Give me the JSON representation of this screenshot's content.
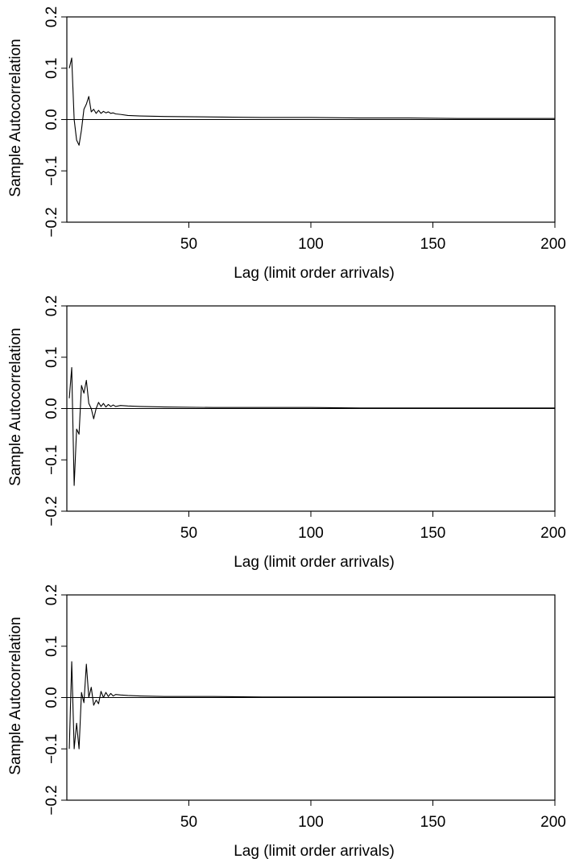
{
  "chart_data": [
    {
      "type": "line",
      "xlabel": "Lag (limit order arrivals)",
      "ylabel": "Sample Autocorrelation",
      "xlim": [
        0,
        200
      ],
      "ylim": [
        -0.2,
        0.2
      ],
      "xticks": [
        "50",
        "100",
        "150",
        "200"
      ],
      "yticks": [
        "-0.2",
        "-0.1",
        "0.0",
        "0.1",
        "0.2"
      ],
      "grid": false,
      "reference_line": 0,
      "x": [
        1,
        2,
        3,
        4,
        5,
        6,
        7,
        8,
        9,
        10,
        11,
        12,
        13,
        14,
        15,
        16,
        17,
        18,
        19,
        20,
        22,
        25,
        30,
        40,
        60,
        80,
        100,
        120,
        140,
        160,
        180,
        200
      ],
      "series": [
        {
          "values": [
            0.1,
            0.12,
            0.0,
            -0.04,
            -0.05,
            -0.02,
            0.02,
            0.03,
            0.045,
            0.015,
            0.02,
            0.012,
            0.018,
            0.012,
            0.016,
            0.013,
            0.015,
            0.012,
            0.013,
            0.011,
            0.01,
            0.008,
            0.007,
            0.006,
            0.005,
            0.004,
            0.004,
            0.003,
            0.003,
            0.002,
            0.002,
            0.002
          ]
        }
      ]
    },
    {
      "type": "line",
      "xlabel": "Lag (limit order arrivals)",
      "ylabel": "Sample Autocorrelation",
      "xlim": [
        0,
        200
      ],
      "ylim": [
        -0.2,
        0.2
      ],
      "xticks": [
        "50",
        "100",
        "150",
        "200"
      ],
      "yticks": [
        "-0.2",
        "-0.1",
        "0.0",
        "0.1",
        "0.2"
      ],
      "grid": false,
      "reference_line": 0,
      "x": [
        1,
        2,
        3,
        4,
        5,
        6,
        7,
        8,
        9,
        10,
        11,
        12,
        13,
        14,
        15,
        16,
        17,
        18,
        19,
        20,
        22,
        25,
        30,
        40,
        60,
        80,
        100,
        120,
        140,
        160,
        180,
        200
      ],
      "series": [
        {
          "values": [
            0.02,
            0.08,
            -0.15,
            -0.04,
            -0.05,
            0.045,
            0.03,
            0.055,
            0.01,
            0.0,
            -0.02,
            0.0,
            0.012,
            0.004,
            0.01,
            0.003,
            0.008,
            0.004,
            0.007,
            0.004,
            0.006,
            0.005,
            0.004,
            0.003,
            0.002,
            0.002,
            0.002,
            0.001,
            0.001,
            0.001,
            0.001,
            0.001
          ]
        }
      ]
    },
    {
      "type": "line",
      "xlabel": "Lag (limit order arrivals)",
      "ylabel": "Sample Autocorrelation",
      "xlim": [
        0,
        200
      ],
      "ylim": [
        -0.2,
        0.2
      ],
      "xticks": [
        "50",
        "100",
        "150",
        "200"
      ],
      "yticks": [
        "-0.2",
        "-0.1",
        "0.0",
        "0.1",
        "0.2"
      ],
      "grid": false,
      "reference_line": 0,
      "x": [
        1,
        2,
        3,
        4,
        5,
        6,
        7,
        8,
        9,
        10,
        11,
        12,
        13,
        14,
        15,
        16,
        17,
        18,
        19,
        20,
        22,
        25,
        30,
        40,
        60,
        80,
        100,
        120,
        140,
        160,
        180,
        200
      ],
      "series": [
        {
          "values": [
            -0.1,
            0.07,
            -0.1,
            -0.05,
            -0.1,
            0.01,
            -0.01,
            0.065,
            0.0,
            0.02,
            -0.015,
            -0.005,
            -0.012,
            0.012,
            0.0,
            0.01,
            0.002,
            0.008,
            0.003,
            0.006,
            0.005,
            0.004,
            0.003,
            0.002,
            0.002,
            0.001,
            0.001,
            0.001,
            0.001,
            0.001,
            0.001,
            0.001
          ]
        }
      ]
    }
  ]
}
